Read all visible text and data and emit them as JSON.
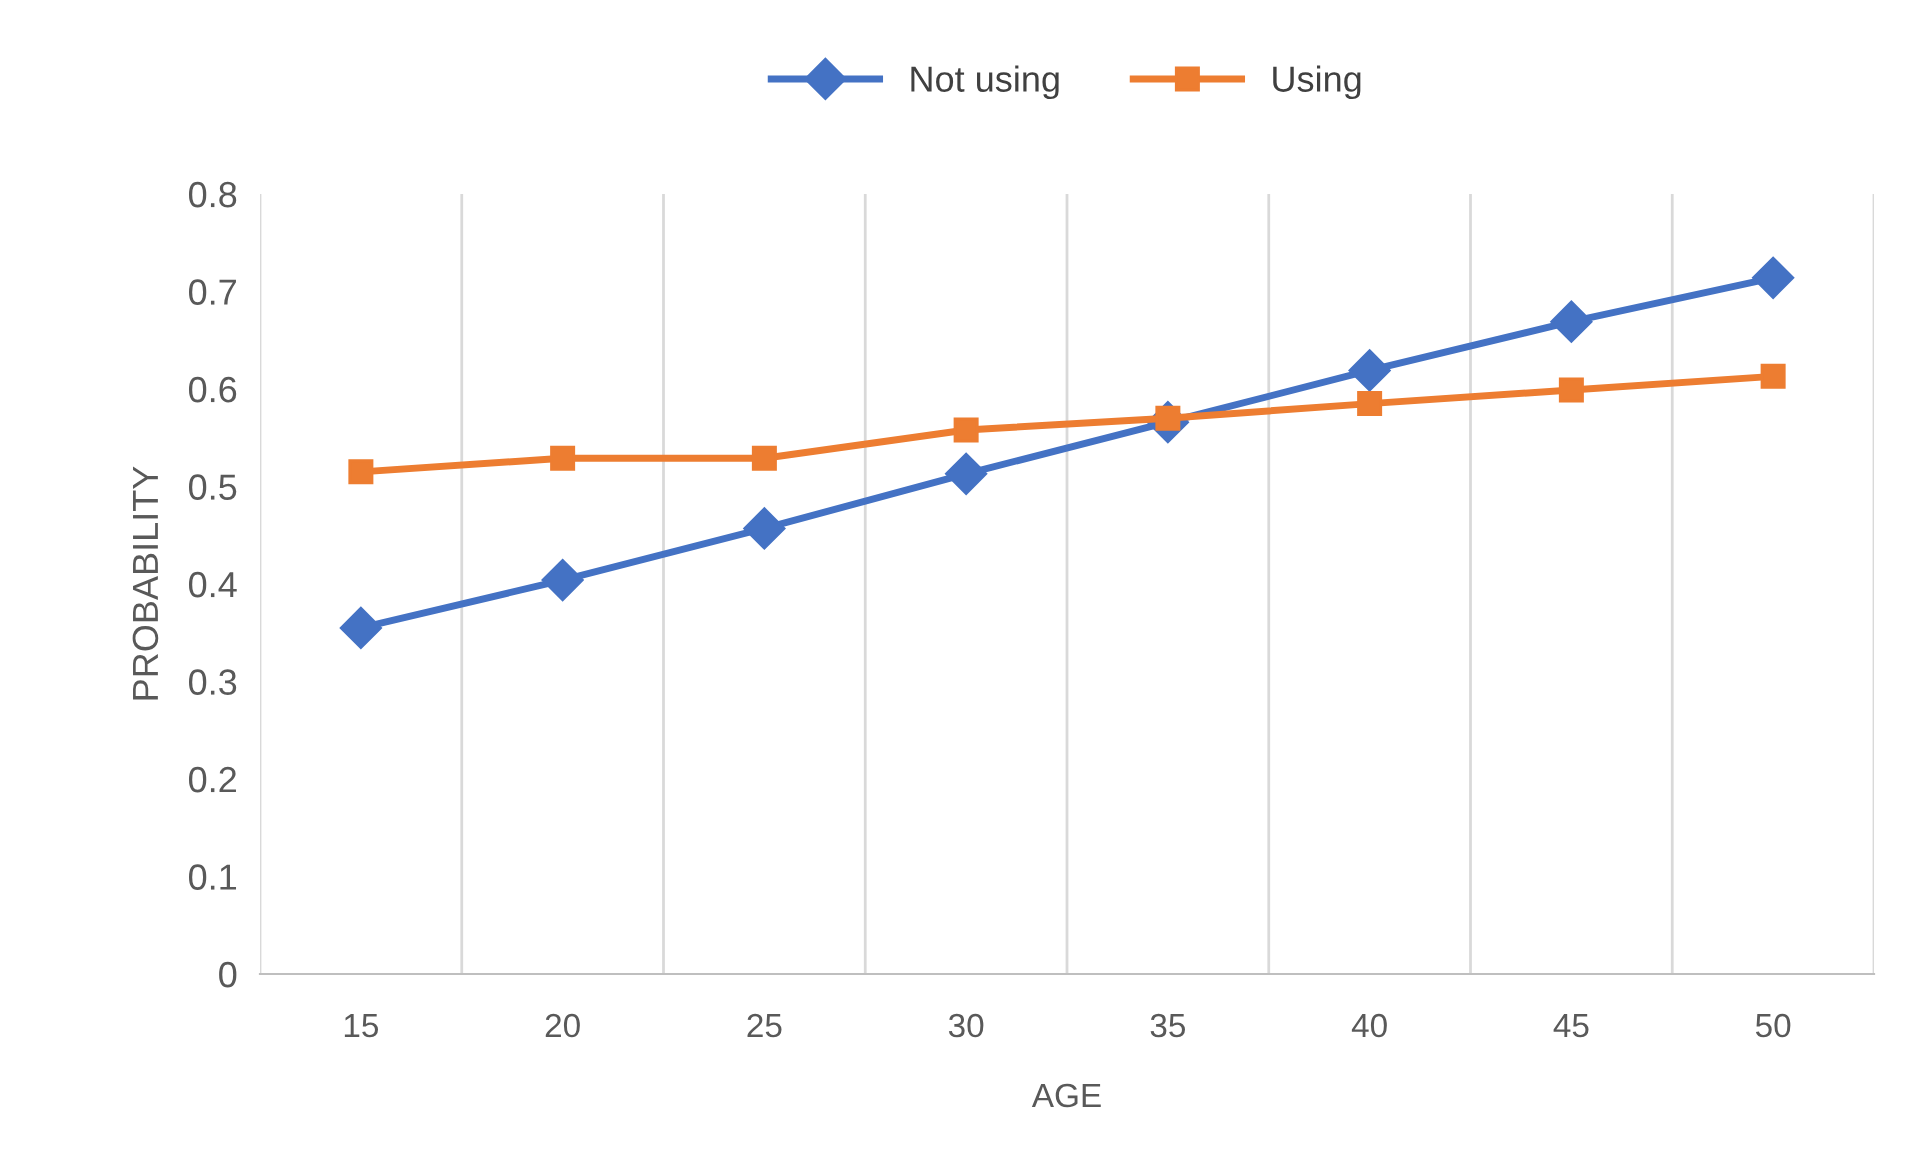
{
  "chart_data": {
    "type": "line",
    "xlabel": "AGE",
    "ylabel": "PROBABILITY",
    "categories": [
      "15",
      "20",
      "25",
      "30",
      "35",
      "40",
      "45",
      "50"
    ],
    "series": [
      {
        "name": "Not using",
        "color": "#4472c4",
        "marker": "diamond",
        "values": [
          0.355,
          0.404,
          0.457,
          0.513,
          0.566,
          0.619,
          0.669,
          0.714
        ]
      },
      {
        "name": "Using",
        "color": "#ed7d31",
        "marker": "square",
        "values": [
          0.515,
          0.529,
          0.529,
          0.558,
          0.57,
          0.585,
          0.599,
          0.613
        ]
      }
    ],
    "ylim": [
      0,
      0.8
    ],
    "yticks": [
      0,
      0.1,
      0.2,
      0.3,
      0.4,
      0.5,
      0.6,
      0.7,
      0.8
    ],
    "grid": "x",
    "legend": "top",
    "line_style": "solid"
  }
}
